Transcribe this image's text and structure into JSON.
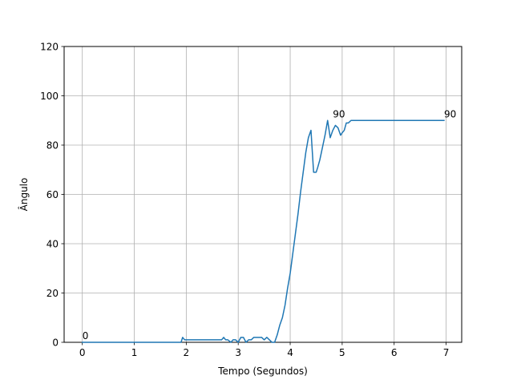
{
  "chart_data": {
    "type": "line",
    "title": "",
    "xlabel": "Tempo (Segundos)",
    "ylabel": "Ângulo",
    "xlim": [
      -0.35,
      7.3
    ],
    "ylim": [
      0,
      120
    ],
    "xticks": [
      0,
      1,
      2,
      3,
      4,
      5,
      6,
      7
    ],
    "yticks": [
      0,
      20,
      40,
      60,
      80,
      100,
      120
    ],
    "grid": true,
    "line_color": "#1f77b4",
    "series": [
      {
        "name": "Ângulo",
        "x": [
          0.0,
          0.5,
          1.0,
          1.5,
          1.9,
          1.93,
          1.97,
          2.0,
          2.2,
          2.4,
          2.6,
          2.68,
          2.72,
          2.76,
          2.8,
          2.86,
          2.9,
          2.95,
          3.0,
          3.05,
          3.1,
          3.15,
          3.2,
          3.25,
          3.3,
          3.35,
          3.4,
          3.45,
          3.5,
          3.55,
          3.6,
          3.65,
          3.7,
          3.75,
          3.8,
          3.85,
          3.9,
          3.95,
          4.0,
          4.05,
          4.1,
          4.15,
          4.2,
          4.25,
          4.3,
          4.35,
          4.4,
          4.45,
          4.5,
          4.53,
          4.57,
          4.62,
          4.67,
          4.72,
          4.77,
          4.82,
          4.87,
          4.92,
          4.97,
          5.0,
          5.04,
          5.08,
          5.12,
          5.17,
          5.22,
          5.27,
          5.4,
          5.6,
          6.0,
          6.5,
          6.96
        ],
        "y": [
          0,
          0,
          0,
          0,
          0,
          2,
          1,
          1,
          1,
          1,
          1,
          1,
          2,
          1,
          1,
          0,
          1,
          1,
          0,
          2,
          2,
          0,
          1,
          1,
          2,
          2,
          2,
          2,
          1,
          2,
          1,
          0,
          0,
          3,
          7,
          10,
          15,
          22,
          28,
          36,
          44,
          52,
          61,
          69,
          77,
          83,
          86,
          69,
          69,
          71,
          74,
          79,
          84,
          90,
          83,
          86,
          88,
          87,
          84,
          85,
          86,
          89,
          89,
          90,
          90,
          90,
          90,
          90,
          90,
          90,
          90
        ]
      }
    ],
    "annotations": [
      {
        "x": 0,
        "y": 0,
        "text": "0"
      },
      {
        "x": 4.82,
        "y": 90,
        "text": "90"
      },
      {
        "x": 6.96,
        "y": 90,
        "text": "90"
      }
    ]
  }
}
